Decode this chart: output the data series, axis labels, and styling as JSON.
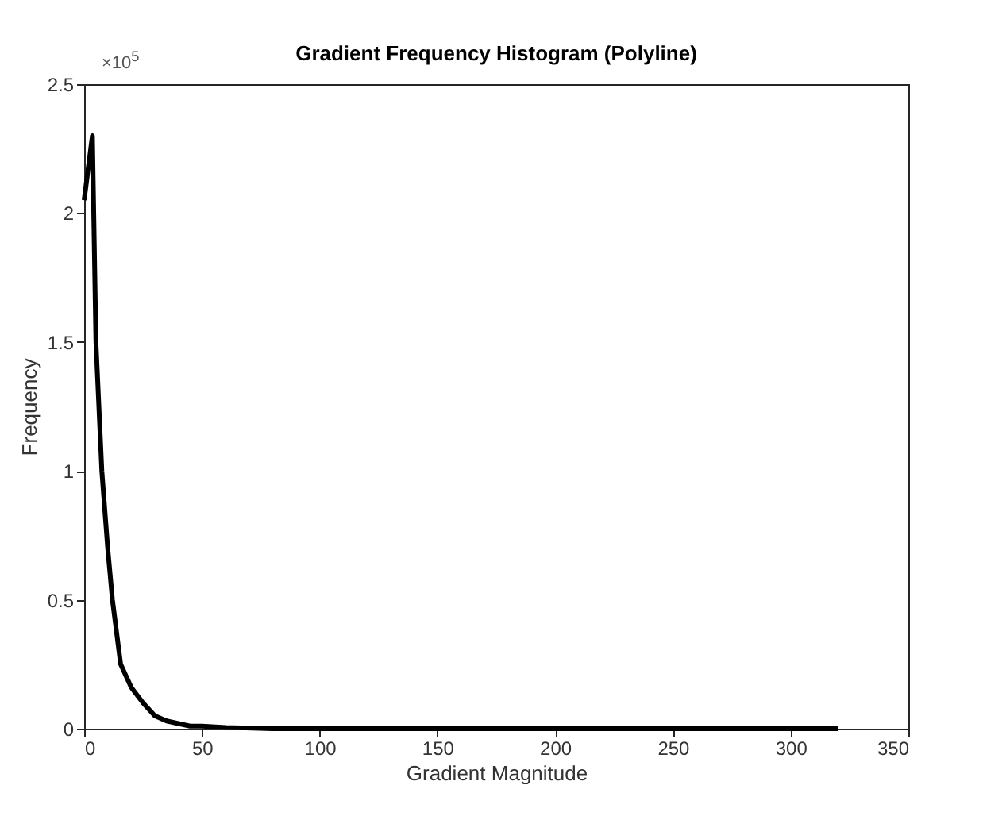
{
  "chart_data": {
    "type": "line",
    "title": "Gradient Frequency Histogram (Polyline)",
    "xlabel": "Gradient Magnitude",
    "ylabel": "Frequency",
    "annotations": [
      "×10$^{5}$"
    ],
    "x": [
      0,
      3.5,
      5,
      7.5,
      10,
      12,
      15.5,
      20,
      25,
      30,
      35,
      40,
      45,
      50,
      60,
      80,
      100,
      150,
      200,
      250,
      300,
      320
    ],
    "series": [
      {
        "color": "#000000",
        "values": [
          2.05,
          2.3,
          1.5,
          1.0,
          0.7,
          0.5,
          0.25,
          0.16,
          0.1,
          0.05,
          0.03,
          0.02,
          0.01,
          0.01,
          0.005,
          0,
          0,
          0,
          0,
          0,
          0,
          0
        ]
      }
    ],
    "xlim": [
      0,
      350
    ],
    "xticks": [
      0,
      50,
      100,
      150,
      200,
      250,
      300,
      350
    ],
    "ylim": [
      0,
      2.5
    ],
    "yticks": [
      0,
      0.5,
      1,
      1.5,
      2,
      2.5
    ],
    "grid": false,
    "marker": "none",
    "line_style": "solid"
  }
}
